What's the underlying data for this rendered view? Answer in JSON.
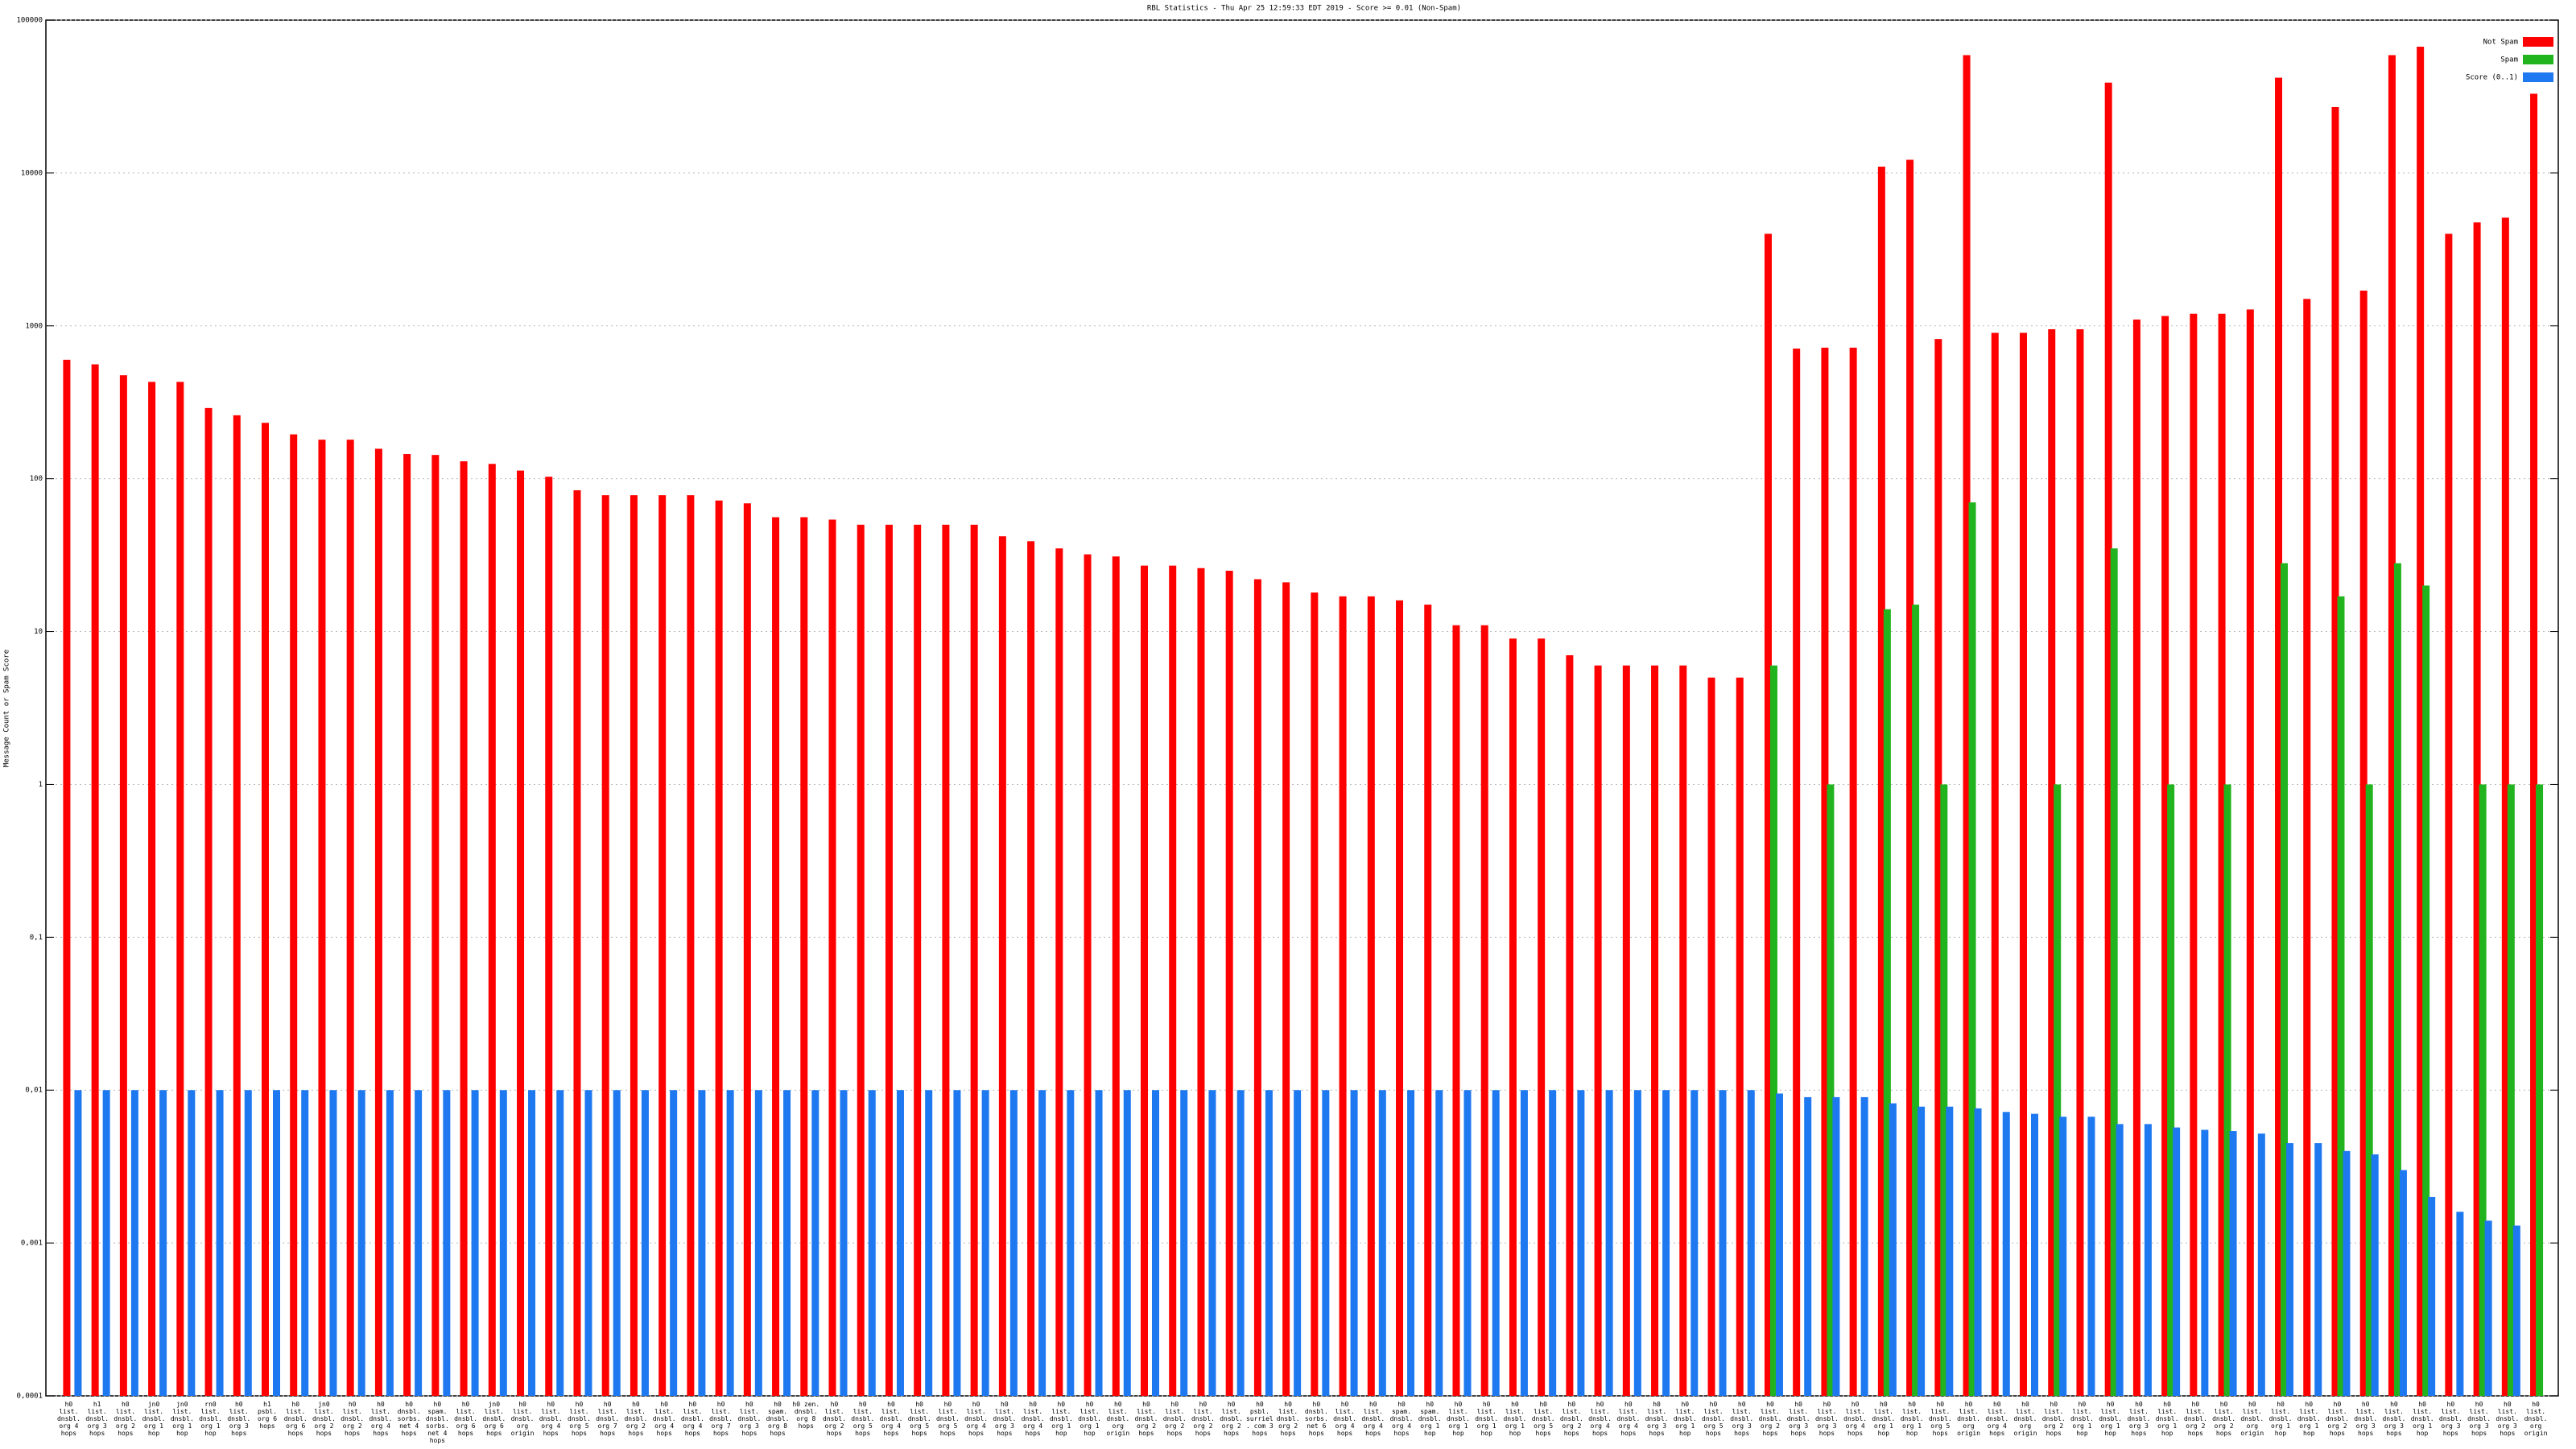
{
  "chart_data": {
    "type": "bar",
    "title": "RBL Statistics - Thu Apr 25 12:59:33 EDT 2019 - Score >= 0.01 (Non-Spam)",
    "y_label": "Message Count or Spam Score",
    "log_scale": true,
    "grid": true,
    "legend": "top-right",
    "ylim": [
      0.0001,
      100000
    ],
    "yticks": [
      {
        "value": 0.0001,
        "label": "0,0001"
      },
      {
        "value": 0.001,
        "label": "0,001"
      },
      {
        "value": 0.01,
        "label": "0,01"
      },
      {
        "value": 0.1,
        "label": "0,1"
      },
      1,
      10,
      100,
      1000,
      10000,
      100000
    ],
    "categories": [
      "h0 list. dnsbl. org 4 hops",
      "h1 list. dnsbl. org 3 hops",
      "h0 list. dnsbl. org 2 hops",
      "jn0 list. dnsbl. org 1 hop",
      "jn0 list. dnsbl. org 1 hop",
      "rn0 list. dnsbl. org 1 hop",
      "h0 list. dnsbl. org 3 hops",
      "h1 psbl. org 6 hops",
      "h0 list. dnsbl. org 6 hops",
      "jn0 list. dnsbl. org 2 hops",
      "h0 list. dnsbl. org 2 hops",
      "h0 list. dnsbl. org 4 hops",
      "h0 dnsbl. sorbs. net 4 hops",
      "h0 spam. dnsbl. sorbs. net 4 hops",
      "h0 list. dnsbl. org 6 hops",
      "jn0 list. dnsbl. org 6 hops",
      "h0 list. dnsbl. org origin",
      "h0 list. dnsbl. org 4 hops",
      "h0 list. dnsbl. org 5 hops",
      "h0 list. dnsbl. org 7 hops",
      "h0 list. dnsbl. org 2 hops",
      "h0 list. dnsbl. org 4 hops",
      "h0 list. dnsbl. org 4 hops",
      "h0 list. dnsbl. org 7 hops",
      "h0 list. dnsbl. org 3 hops",
      "h0 spam. dnsbl. org 8 hops",
      "h0 zen. dnsbl. org 8 hops",
      "h0 list. dnsbl. org 2 hops",
      "h0 list. dnsbl. org 5 hops",
      "h0 list. dnsbl. org 4 hops",
      "h0 list. dnsbl. org 5 hops",
      "h0 list. dnsbl. org 5 hops",
      "h0 list. dnsbl. org 4 hops",
      "h0 list. dnsbl. org 3 hops",
      "h0 list. dnsbl. org 4 hops",
      "h0 list. dnsbl. org 1 hop",
      "h0 list. dnsbl. org 1 hop",
      "h0 list. dnsbl. org origin",
      "h0 list. dnsbl. org 2 hops",
      "h0 list. dnsbl. org 2 hops",
      "h0 list. dnsbl. org 2 hops",
      "h0 list. dnsbl. org 2 hops",
      "h0 psbl. surriel. com 3 hops",
      "h0 list. dnsbl. org 2 hops",
      "h0 dnsbl. sorbs. net 6 hops",
      "h0 list. dnsbl. org 4 hops",
      "h0 list. dnsbl. org 4 hops",
      "h0 spam. dnsbl. org 4 hops",
      "h0 spam. dnsbl. org 1 hop",
      "h0 list. dnsbl. org 1 hop",
      "h0 list. dnsbl. org 1 hop",
      "h0 list. dnsbl. org 1 hop",
      "h0 list. dnsbl. org 5 hops",
      "h0 list. dnsbl. org 2 hops",
      "h0 list. dnsbl. org 4 hops",
      "h0 list. dnsbl. org 4 hops",
      "h0 list. dnsbl. org 3 hops",
      "h0 list. dnsbl. org 1 hop",
      "h0 list. dnsbl. org 5 hops",
      "h0 list. dnsbl. org 3 hops",
      "h0 list. dnsbl. org 2 hops",
      "h0 list. dnsbl. org 3 hops",
      "h0 list. dnsbl. org 3 hops",
      "h0 list. dnsbl. org 4 hops",
      "h0 list. dnsbl. org 1 hop",
      "h0 list. dnsbl. org 1 hop",
      "h0 list. dnsbl. org 5 hops",
      "h0 list. dnsbl. org origin",
      "h0 list. dnsbl. org 4 hops",
      "h0 list. dnsbl. org origin",
      "h0 list. dnsbl. org 2 hops",
      "h0 list. dnsbl. org 1 hop",
      "h0 list. dnsbl. org 1 hop",
      "h0 list. dnsbl. org 3 hops",
      "h0 list. dnsbl. org 1 hop",
      "h0 list. dnsbl. org 2 hops",
      "h0 list. dnsbl. org 2 hops",
      "h0 list. dnsbl. org origin",
      "h0 list. dnsbl. org 1 hop",
      "h0 list. dnsbl. org 1 hop",
      "h0 list. dnsbl. org 2 hops",
      "h0 list. dnsbl. org 3 hops",
      "h0 list. dnsbl. org 3 hops",
      "h0 list. dnsbl. org 1 hop",
      "h0 list. dnsbl. org 3 hops",
      "h0 list. dnsbl. org 3 hops",
      "h0 list. dnsbl. org 3 hops",
      "h0 list. dnsbl. org origin"
    ],
    "series": [
      {
        "name": "Not Spam",
        "color": "#ff0000",
        "values": [
          600,
          560,
          475,
          430,
          430,
          290,
          260,
          232,
          195,
          180,
          180,
          157,
          145,
          143,
          130,
          125,
          113,
          103,
          84,
          78,
          78,
          78,
          78,
          72,
          69,
          56,
          56,
          54,
          50,
          50,
          50,
          50,
          50,
          42,
          39,
          35,
          32,
          31,
          27,
          27,
          26,
          25,
          22,
          21,
          18,
          17,
          17,
          16,
          15,
          11,
          11,
          9,
          9,
          7,
          6,
          6,
          6,
          6,
          5,
          5,
          4000,
          710,
          720,
          720,
          11000,
          12200,
          820,
          59000,
          900,
          900,
          950,
          950,
          39000,
          1100,
          1160,
          1200,
          1200,
          1280,
          42000,
          1500,
          27000,
          1700,
          59000,
          67000,
          4000,
          4750,
          5100,
          33000
        ]
      },
      {
        "name": "Spam",
        "color": "#22b41e",
        "values": [
          null,
          null,
          null,
          null,
          null,
          null,
          null,
          null,
          null,
          null,
          null,
          null,
          null,
          null,
          null,
          null,
          null,
          null,
          null,
          null,
          null,
          null,
          null,
          null,
          null,
          null,
          null,
          null,
          null,
          null,
          null,
          null,
          null,
          null,
          null,
          null,
          null,
          null,
          null,
          null,
          null,
          null,
          null,
          null,
          null,
          null,
          null,
          null,
          null,
          null,
          null,
          null,
          null,
          null,
          null,
          null,
          null,
          null,
          null,
          null,
          6,
          null,
          1,
          null,
          14,
          15,
          1,
          70,
          null,
          null,
          1,
          null,
          35,
          null,
          1,
          null,
          1,
          null,
          28,
          null,
          17,
          1,
          28,
          20,
          null,
          1,
          1,
          1
        ]
      },
      {
        "name": "Score (0..1)",
        "color": "#1e78f0",
        "values": [
          0.01,
          0.01,
          0.01,
          0.01,
          0.01,
          0.01,
          0.01,
          0.01,
          0.01,
          0.01,
          0.01,
          0.01,
          0.01,
          0.01,
          0.01,
          0.01,
          0.01,
          0.01,
          0.01,
          0.01,
          0.01,
          0.01,
          0.01,
          0.01,
          0.01,
          0.01,
          0.01,
          0.01,
          0.01,
          0.01,
          0.01,
          0.01,
          0.01,
          0.01,
          0.01,
          0.01,
          0.01,
          0.01,
          0.01,
          0.01,
          0.01,
          0.01,
          0.01,
          0.01,
          0.01,
          0.01,
          0.01,
          0.01,
          0.01,
          0.01,
          0.01,
          0.01,
          0.01,
          0.01,
          0.01,
          0.01,
          0.01,
          0.01,
          0.01,
          0.01,
          0.0095,
          0.009,
          0.009,
          0.009,
          0.0082,
          0.0078,
          0.0078,
          0.0076,
          0.0072,
          0.007,
          0.0067,
          0.0067,
          0.006,
          0.006,
          0.0057,
          0.0055,
          0.0054,
          0.0052,
          0.0045,
          0.0045,
          0.004,
          0.0038,
          0.003,
          0.002,
          0.0016,
          0.0014,
          0.0013,
          null
        ]
      }
    ]
  }
}
